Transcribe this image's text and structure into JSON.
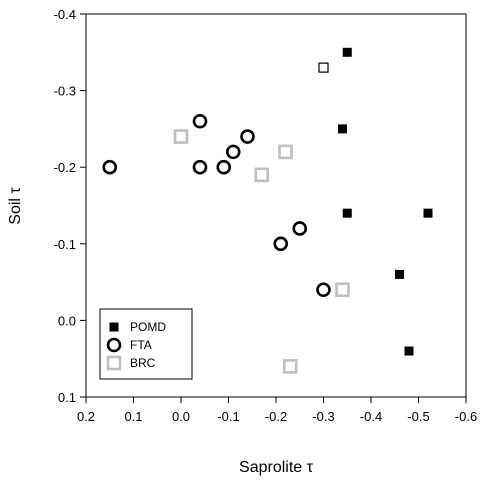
{
  "chart_data": {
    "type": "scatter",
    "xlabel": "Saprolite τ",
    "ylabel": "Soil τ",
    "xlim": [
      0.2,
      -0.6
    ],
    "ylim": [
      0.1,
      -0.4
    ],
    "x_reversed": true,
    "y_reversed": true,
    "x_ticks": [
      0.2,
      0.1,
      0.0,
      -0.1,
      -0.2,
      -0.3,
      -0.4,
      -0.5,
      -0.6
    ],
    "x_tick_labels": [
      "0.2",
      "0.1",
      "0.0",
      "-0.1",
      "-0.2",
      "-0.3",
      "-0.4",
      "-0.5",
      "-0.6"
    ],
    "y_ticks": [
      -0.4,
      -0.3,
      -0.2,
      -0.1,
      0.0,
      0.1
    ],
    "y_tick_labels": [
      "-0.4",
      "-0.3",
      "-0.2",
      "-0.1",
      "0.0",
      "0.1"
    ],
    "legend_position": "bottom-left",
    "grid": false,
    "series": [
      {
        "name": "POMD",
        "marker": "filled-square",
        "color": "#000000",
        "points": [
          {
            "x": -0.35,
            "y": -0.35
          },
          {
            "x": -0.34,
            "y": -0.25
          },
          {
            "x": -0.35,
            "y": -0.14
          },
          {
            "x": -0.52,
            "y": -0.14
          },
          {
            "x": -0.46,
            "y": -0.06
          },
          {
            "x": -0.48,
            "y": 0.04
          }
        ]
      },
      {
        "name": "FTA",
        "marker": "open-circle",
        "color": "#000000",
        "points": [
          {
            "x": 0.15,
            "y": -0.2
          },
          {
            "x": -0.04,
            "y": -0.26
          },
          {
            "x": -0.04,
            "y": -0.2
          },
          {
            "x": -0.09,
            "y": -0.2
          },
          {
            "x": -0.11,
            "y": -0.22
          },
          {
            "x": -0.14,
            "y": -0.24
          },
          {
            "x": -0.21,
            "y": -0.1
          },
          {
            "x": -0.25,
            "y": -0.12
          },
          {
            "x": -0.3,
            "y": -0.04
          }
        ]
      },
      {
        "name": "BRC",
        "marker": "open-square",
        "color": "#bfbfbf",
        "points": [
          {
            "x": 0.0,
            "y": -0.24
          },
          {
            "x": -0.17,
            "y": -0.19
          },
          {
            "x": -0.22,
            "y": -0.22
          },
          {
            "x": -0.34,
            "y": -0.04
          },
          {
            "x": -0.23,
            "y": 0.06
          }
        ]
      },
      {
        "name": "",
        "marker": "open-square",
        "color": "#000000",
        "points": [
          {
            "x": -0.3,
            "y": -0.33
          }
        ]
      }
    ]
  }
}
